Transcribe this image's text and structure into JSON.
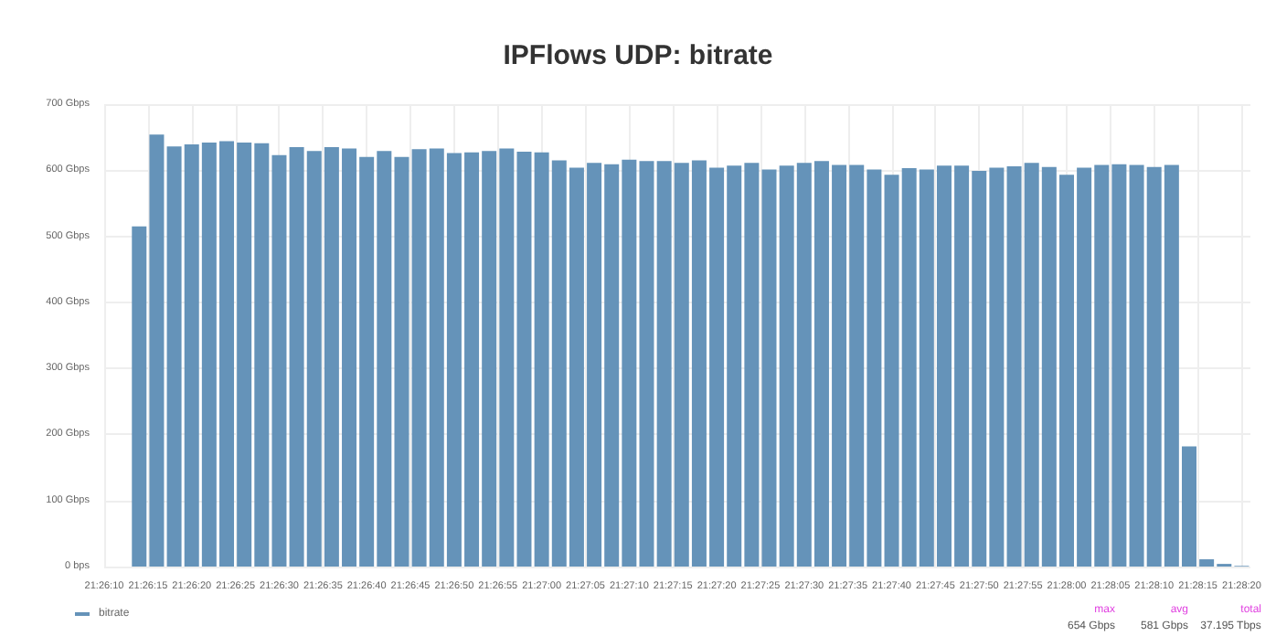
{
  "chart_data": {
    "type": "bar",
    "title": "IPFlows UDP: bitrate",
    "x": [
      21.437222,
      21.437778,
      21.438333,
      21.438889,
      21.439444,
      21.44,
      21.440556,
      21.441111,
      21.441667,
      21.442222,
      21.442778,
      21.443333,
      21.443889,
      21.444444,
      21.445,
      21.445556,
      21.446111,
      21.446667,
      21.447222,
      21.447778,
      21.448333,
      21.448889,
      21.449444,
      21.45,
      21.450556,
      21.451111,
      21.451667,
      21.452222,
      21.452778,
      21.453333,
      21.453889,
      21.454444,
      21.455,
      21.455556,
      21.456111,
      21.456667,
      21.457222,
      21.457778,
      21.458333,
      21.458889,
      21.459444,
      21.46,
      21.460556,
      21.461111,
      21.461667,
      21.462222,
      21.462778,
      21.463333,
      21.463889,
      21.464444,
      21.465,
      21.465556,
      21.466111,
      21.466667,
      21.467222,
      21.467778,
      21.468333,
      21.468889,
      21.469444,
      21.47,
      21.470556,
      21.471111,
      21.471667,
      21.472222
    ],
    "series": [
      {
        "name": "bitrate",
        "color": "#6593b9",
        "values": [
          515,
          654,
          636,
          639,
          642,
          644,
          642,
          641,
          623,
          635,
          629,
          635,
          633,
          620,
          629,
          620,
          632,
          633,
          626,
          627,
          629,
          633,
          628,
          627,
          615,
          604,
          611,
          609,
          616,
          614,
          614,
          611,
          615,
          604,
          607,
          611,
          601,
          607,
          611,
          614,
          608,
          608,
          601,
          593,
          603,
          601,
          607,
          607,
          599,
          604,
          606,
          611,
          605,
          593,
          604,
          608,
          609,
          608,
          605,
          608,
          182,
          11,
          4,
          1
        ]
      }
    ],
    "xlim": [
      21.436111,
      21.4725
    ],
    "xticks": [
      {
        "value": 21.436111,
        "label": "21:26:10"
      },
      {
        "value": 21.4375,
        "label": "21:26:15"
      },
      {
        "value": 21.438889,
        "label": "21:26:20"
      },
      {
        "value": 21.440278,
        "label": "21:26:25"
      },
      {
        "value": 21.441667,
        "label": "21:26:30"
      },
      {
        "value": 21.443056,
        "label": "21:26:35"
      },
      {
        "value": 21.444444,
        "label": "21:26:40"
      },
      {
        "value": 21.445833,
        "label": "21:26:45"
      },
      {
        "value": 21.447222,
        "label": "21:26:50"
      },
      {
        "value": 21.448611,
        "label": "21:26:55"
      },
      {
        "value": 21.45,
        "label": "21:27:00"
      },
      {
        "value": 21.451389,
        "label": "21:27:05"
      },
      {
        "value": 21.452778,
        "label": "21:27:10"
      },
      {
        "value": 21.454167,
        "label": "21:27:15"
      },
      {
        "value": 21.455556,
        "label": "21:27:20"
      },
      {
        "value": 21.456944,
        "label": "21:27:25"
      },
      {
        "value": 21.458333,
        "label": "21:27:30"
      },
      {
        "value": 21.459722,
        "label": "21:27:35"
      },
      {
        "value": 21.461111,
        "label": "21:27:40"
      },
      {
        "value": 21.4625,
        "label": "21:27:45"
      },
      {
        "value": 21.463889,
        "label": "21:27:50"
      },
      {
        "value": 21.465278,
        "label": "21:27:55"
      },
      {
        "value": 21.466667,
        "label": "21:28:00"
      },
      {
        "value": 21.468056,
        "label": "21:28:05"
      },
      {
        "value": 21.469444,
        "label": "21:28:10"
      },
      {
        "value": 21.470833,
        "label": "21:28:15"
      },
      {
        "value": 21.472222,
        "label": "21:28:20"
      }
    ],
    "ylim": [
      0,
      700
    ],
    "yticks": [
      {
        "value": 0,
        "label": "0 bps"
      },
      {
        "value": 100,
        "label": "100 Gbps"
      },
      {
        "value": 200,
        "label": "200 Gbps"
      },
      {
        "value": 300,
        "label": "300 Gbps"
      },
      {
        "value": 400,
        "label": "400 Gbps"
      },
      {
        "value": 500,
        "label": "500 Gbps"
      },
      {
        "value": 600,
        "label": "600 Gbps"
      },
      {
        "value": 700,
        "label": "700 Gbps"
      }
    ],
    "grid": true,
    "legend": "bottom left",
    "annotations": [
      "max",
      "avg",
      "total",
      "654 Gbps",
      "581 Gbps",
      "37.195 Tbps"
    ]
  }
}
